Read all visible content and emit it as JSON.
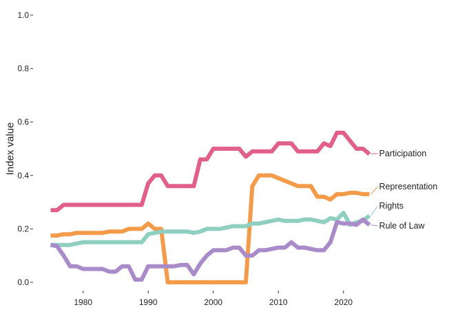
{
  "chart_data": {
    "type": "line",
    "title": "",
    "xlabel": "",
    "ylabel": "Index value",
    "xlim": [
      1974,
      2025
    ],
    "ylim": [
      0,
      1
    ],
    "x_ticks": [
      1980,
      1990,
      2000,
      2010,
      2020
    ],
    "y_ticks": [
      "0.0",
      "0.2",
      "0.4",
      "0.6",
      "0.8",
      "1.0"
    ],
    "grid": false,
    "legend": "direct labels at right end of each line",
    "x": [
      1975,
      1976,
      1977,
      1978,
      1979,
      1980,
      1981,
      1982,
      1983,
      1984,
      1985,
      1986,
      1987,
      1988,
      1989,
      1990,
      1991,
      1992,
      1993,
      1994,
      1995,
      1996,
      1997,
      1998,
      1999,
      2000,
      2001,
      2002,
      2003,
      2004,
      2005,
      2006,
      2007,
      2008,
      2009,
      2010,
      2011,
      2012,
      2013,
      2014,
      2015,
      2016,
      2017,
      2018,
      2019,
      2020,
      2021,
      2022,
      2023,
      2024
    ],
    "series": [
      {
        "name": "Participation",
        "color": "#e0608a",
        "values": [
          0.27,
          0.27,
          0.29,
          0.29,
          0.29,
          0.29,
          0.29,
          0.29,
          0.29,
          0.29,
          0.29,
          0.29,
          0.29,
          0.29,
          0.29,
          0.37,
          0.4,
          0.4,
          0.36,
          0.36,
          0.36,
          0.36,
          0.36,
          0.46,
          0.46,
          0.5,
          0.5,
          0.5,
          0.5,
          0.5,
          0.47,
          0.49,
          0.49,
          0.49,
          0.49,
          0.52,
          0.52,
          0.52,
          0.49,
          0.49,
          0.49,
          0.49,
          0.52,
          0.51,
          0.56,
          0.56,
          0.53,
          0.5,
          0.5,
          0.48
        ]
      },
      {
        "name": "Representation",
        "color": "#f39b4b",
        "values": [
          0.175,
          0.175,
          0.18,
          0.18,
          0.185,
          0.185,
          0.185,
          0.185,
          0.185,
          0.19,
          0.19,
          0.19,
          0.2,
          0.2,
          0.2,
          0.22,
          0.2,
          0.2,
          0.0,
          0.0,
          0.0,
          0.0,
          0.0,
          0.0,
          0.0,
          0.0,
          0.0,
          0.0,
          0.0,
          0.0,
          0.0,
          0.36,
          0.4,
          0.4,
          0.4,
          0.39,
          0.38,
          0.37,
          0.36,
          0.36,
          0.36,
          0.32,
          0.32,
          0.31,
          0.33,
          0.33,
          0.335,
          0.335,
          0.33,
          0.33
        ]
      },
      {
        "name": "Rights",
        "color": "#8ecfbf",
        "values": [
          0.14,
          0.14,
          0.14,
          0.14,
          0.145,
          0.15,
          0.15,
          0.15,
          0.15,
          0.15,
          0.15,
          0.15,
          0.15,
          0.15,
          0.15,
          0.18,
          0.185,
          0.19,
          0.19,
          0.19,
          0.19,
          0.19,
          0.185,
          0.19,
          0.2,
          0.2,
          0.2,
          0.205,
          0.21,
          0.21,
          0.21,
          0.22,
          0.22,
          0.225,
          0.23,
          0.235,
          0.23,
          0.23,
          0.23,
          0.235,
          0.235,
          0.23,
          0.225,
          0.24,
          0.235,
          0.26,
          0.215,
          0.225,
          0.23,
          0.25
        ]
      },
      {
        "name": "Rule of Law",
        "color": "#a98bc9",
        "values": [
          0.14,
          0.135,
          0.1,
          0.06,
          0.06,
          0.05,
          0.05,
          0.05,
          0.05,
          0.04,
          0.04,
          0.06,
          0.06,
          0.01,
          0.01,
          0.06,
          0.06,
          0.06,
          0.06,
          0.06,
          0.065,
          0.065,
          0.03,
          0.07,
          0.1,
          0.12,
          0.12,
          0.12,
          0.13,
          0.13,
          0.1,
          0.1,
          0.12,
          0.12,
          0.125,
          0.13,
          0.13,
          0.15,
          0.13,
          0.13,
          0.125,
          0.12,
          0.12,
          0.15,
          0.225,
          0.22,
          0.22,
          0.215,
          0.235,
          0.215
        ]
      }
    ]
  }
}
